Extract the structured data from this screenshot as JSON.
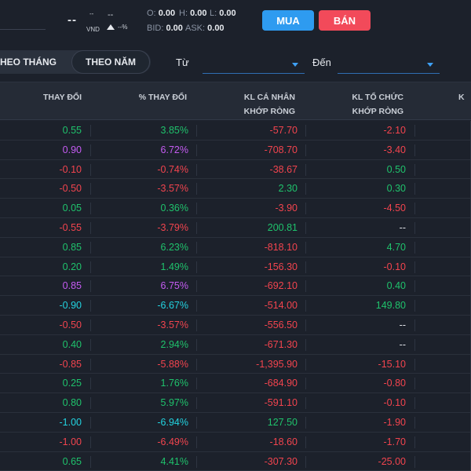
{
  "ticker": {
    "price": "--",
    "price_sup": "--",
    "currency": "VND",
    "change": "--",
    "change_pct": "--%",
    "ohlc": {
      "o_label": "O:",
      "o_value": "0.00",
      "h_label": "H:",
      "h_value": "0.00",
      "l_label": "L:",
      "l_value": "0.00",
      "bid_label": "BID:",
      "bid_value": "0.00",
      "ask_label": "ASK:",
      "ask_value": "0.00"
    }
  },
  "actions": {
    "buy_label": "MUA",
    "sell_label": "BÁN"
  },
  "filters": {
    "tab_month": "HEO THÁNG",
    "tab_year": "THEO NĂM",
    "from_label": "Từ",
    "to_label": "Đến",
    "from_value": "",
    "to_value": ""
  },
  "table": {
    "headers": {
      "change": "THAY ĐỔI",
      "pct_change": "% THAY ĐỔI",
      "individual_1": "KL CÁ NHÂN",
      "individual_2": "KHỚP RÒNG",
      "institution_1": "KL TỔ CHỨC",
      "institution_2": "KHỚP RÒNG",
      "next": "K"
    },
    "rows": [
      {
        "change": "0.55",
        "pct": "3.85%",
        "ind": "-57.70",
        "inst": "-2.10",
        "cls": "up",
        "ind_cls": "down",
        "inst_cls": "down"
      },
      {
        "change": "0.90",
        "pct": "6.72%",
        "ind": "-708.70",
        "inst": "-3.40",
        "cls": "ceil",
        "ind_cls": "down",
        "inst_cls": "down"
      },
      {
        "change": "-0.10",
        "pct": "-0.74%",
        "ind": "-38.67",
        "inst": "0.50",
        "cls": "down",
        "ind_cls": "down",
        "inst_cls": "up"
      },
      {
        "change": "-0.50",
        "pct": "-3.57%",
        "ind": "2.30",
        "inst": "0.30",
        "cls": "down",
        "ind_cls": "up",
        "inst_cls": "up"
      },
      {
        "change": "0.05",
        "pct": "0.36%",
        "ind": "-3.90",
        "inst": "-4.50",
        "cls": "up",
        "ind_cls": "down",
        "inst_cls": "down"
      },
      {
        "change": "-0.55",
        "pct": "-3.79%",
        "ind": "200.81",
        "inst": "--",
        "cls": "down",
        "ind_cls": "up",
        "inst_cls": "neutral"
      },
      {
        "change": "0.85",
        "pct": "6.23%",
        "ind": "-818.10",
        "inst": "4.70",
        "cls": "up",
        "ind_cls": "down",
        "inst_cls": "up"
      },
      {
        "change": "0.20",
        "pct": "1.49%",
        "ind": "-156.30",
        "inst": "-0.10",
        "cls": "up",
        "ind_cls": "down",
        "inst_cls": "down"
      },
      {
        "change": "0.85",
        "pct": "6.75%",
        "ind": "-692.10",
        "inst": "0.40",
        "cls": "ceil",
        "ind_cls": "down",
        "inst_cls": "up"
      },
      {
        "change": "-0.90",
        "pct": "-6.67%",
        "ind": "-514.00",
        "inst": "149.80",
        "cls": "floor",
        "ind_cls": "down",
        "inst_cls": "up"
      },
      {
        "change": "-0.50",
        "pct": "-3.57%",
        "ind": "-556.50",
        "inst": "--",
        "cls": "down",
        "ind_cls": "down",
        "inst_cls": "neutral"
      },
      {
        "change": "0.40",
        "pct": "2.94%",
        "ind": "-671.30",
        "inst": "--",
        "cls": "up",
        "ind_cls": "down",
        "inst_cls": "neutral"
      },
      {
        "change": "-0.85",
        "pct": "-5.88%",
        "ind": "-1,395.90",
        "inst": "-15.10",
        "cls": "down",
        "ind_cls": "down",
        "inst_cls": "down"
      },
      {
        "change": "0.25",
        "pct": "1.76%",
        "ind": "-684.90",
        "inst": "-0.80",
        "cls": "up",
        "ind_cls": "down",
        "inst_cls": "down"
      },
      {
        "change": "0.80",
        "pct": "5.97%",
        "ind": "-591.10",
        "inst": "-0.10",
        "cls": "up",
        "ind_cls": "down",
        "inst_cls": "down"
      },
      {
        "change": "-1.00",
        "pct": "-6.94%",
        "ind": "127.50",
        "inst": "-1.90",
        "cls": "floor",
        "ind_cls": "up",
        "inst_cls": "down"
      },
      {
        "change": "-1.00",
        "pct": "-6.49%",
        "ind": "-18.60",
        "inst": "-1.70",
        "cls": "down",
        "ind_cls": "down",
        "inst_cls": "down"
      },
      {
        "change": "0.65",
        "pct": "4.41%",
        "ind": "-307.30",
        "inst": "-25.00",
        "cls": "up",
        "ind_cls": "down",
        "inst_cls": "down"
      }
    ]
  },
  "colors": {
    "background": "#1c212b",
    "up": "#1fc26c",
    "down": "#f2444e",
    "ceiling": "#c55bf2",
    "floor": "#22d3e0",
    "buy": "#2e9bf0",
    "sell": "#f24a5a"
  }
}
